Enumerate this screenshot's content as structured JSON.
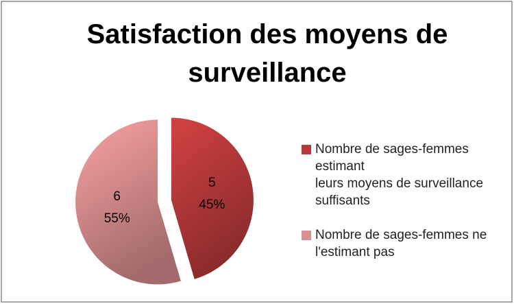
{
  "chart_data": {
    "type": "pie",
    "title": "Satisfaction des moyens de surveillance",
    "series": [
      {
        "name": "Nombre de sages-femmes estimant\nleurs moyens de surveillance suffisants",
        "color": "#b8393a",
        "values": [
          5
        ]
      },
      {
        "name": "Nombre de sages-femmes ne l'estimant pas",
        "color": "#d98e8f",
        "values": [
          6
        ]
      }
    ],
    "percent_labels": [
      "45%",
      "55%"
    ],
    "exploded": true
  }
}
